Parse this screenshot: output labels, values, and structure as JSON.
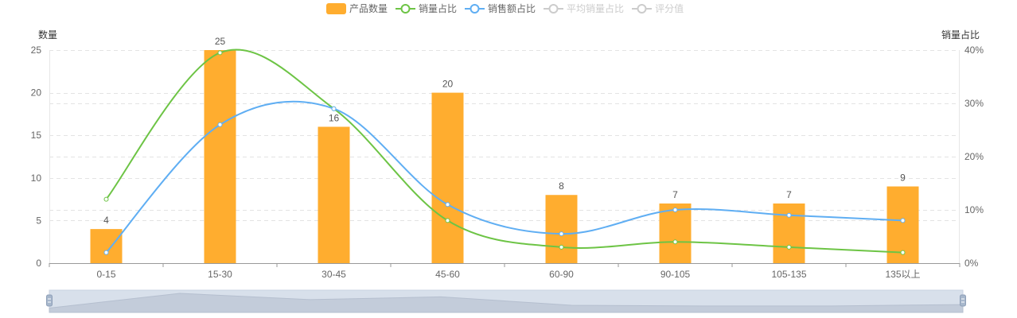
{
  "colors": {
    "bar": "#FFAD2F",
    "sales_share": "#6DC445",
    "revenue_share": "#5FAEF3",
    "inactive": "#CCCCCC",
    "grid": "#E3E3E3"
  },
  "legend": [
    {
      "label": "产品数量",
      "icon": "bar-swatch",
      "active": true
    },
    {
      "label": "销量占比",
      "icon": "line-circle",
      "active": true
    },
    {
      "label": "销售额占比",
      "icon": "line-circle",
      "active": true
    },
    {
      "label": "平均销量占比",
      "icon": "line-circle",
      "active": false
    },
    {
      "label": "评分值",
      "icon": "line-circle",
      "active": false
    }
  ],
  "axis_titles": {
    "left": "数量",
    "right": "销量占比"
  },
  "chart_data": {
    "type": "bar",
    "categories": [
      "0-15",
      "15-30",
      "30-45",
      "45-60",
      "60-90",
      "90-105",
      "105-135",
      "135以上"
    ],
    "series": [
      {
        "name": "产品数量",
        "type": "bar",
        "axis": "left",
        "values": [
          4,
          25,
          16,
          20,
          8,
          7,
          7,
          9
        ]
      },
      {
        "name": "销量占比",
        "type": "line",
        "axis": "right",
        "values": [
          12,
          39.5,
          29,
          8,
          3,
          4,
          3,
          2
        ]
      },
      {
        "name": "销售额占比",
        "type": "line",
        "axis": "right",
        "values": [
          2,
          26,
          29,
          11,
          5.5,
          10,
          9,
          8
        ]
      }
    ],
    "y_left": {
      "min": 0,
      "max": 25,
      "ticks": [
        "0",
        "5",
        "10",
        "15",
        "20",
        "25"
      ]
    },
    "y_right": {
      "min": 0,
      "max": 40,
      "ticks": [
        "0%",
        "10%",
        "20%",
        "30%",
        "40%"
      ]
    },
    "data_labels": [
      "4",
      "25",
      "16",
      "20",
      "8",
      "7",
      "7",
      "9"
    ],
    "grid": true,
    "smooth_lines": true,
    "data_zoom": {
      "start": 0,
      "end": 100
    }
  }
}
